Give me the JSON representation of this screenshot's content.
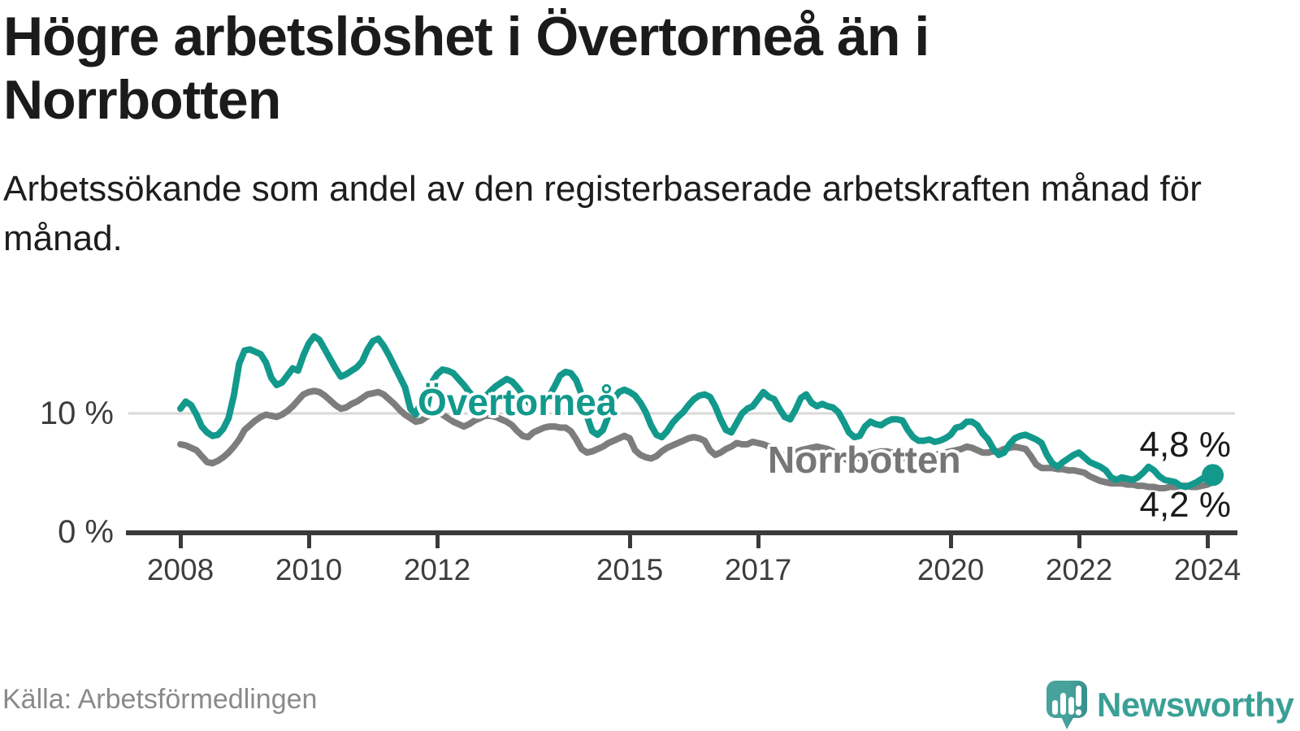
{
  "title": "Högre arbetslöshet i Övertorneå än i Norrbotten",
  "subtitle": "Arbetssökande som andel av den registerbaserade arbetskraften månad för månad.",
  "source": "Källa: Arbetsförmedlingen",
  "branding": {
    "name": "Newsworthy",
    "logo_icon": "speech-bubble-bar-chart-icon",
    "logo_color": "#47a29c",
    "logo_color_dark": "#358f8b",
    "text_color": "#3aa096"
  },
  "colors": {
    "background": "#ffffff",
    "title_text": "#1b1b1b",
    "axis_line": "#3a3a3a",
    "gridline": "#d9d9d9",
    "tick_text": "#3d3d3d",
    "source_text": "#8a8a8a",
    "overtornea": "#12998c",
    "norrbotten": "#7d7d7d"
  },
  "chart_data": {
    "type": "line",
    "title": "Högre arbetslöshet i Övertorneå än i Norrbotten",
    "subtitle": "Arbetssökande som andel av den registerbaserade arbetskraften månad för månad.",
    "unit": "percent of registered labour force",
    "x_start_year": 2008,
    "points_per_year": 12,
    "x_tick_years": [
      2008,
      2010,
      2012,
      2015,
      2017,
      2020,
      2022,
      2024
    ],
    "y_ticks": [
      {
        "value": 0,
        "label": "0 %"
      },
      {
        "value": 10,
        "label": "10 %"
      }
    ],
    "ylim": [
      0,
      17.5
    ],
    "grid": "horizontal-10-only",
    "legend_position": "inline-labels",
    "series": [
      {
        "name": "Övertorneå",
        "color": "#12998c",
        "end_label": "4,8 %",
        "end_value": 4.8,
        "values": [
          10.4,
          11.0,
          10.7,
          9.9,
          8.9,
          8.4,
          8.1,
          8.2,
          8.7,
          9.6,
          11.5,
          14.2,
          15.3,
          15.4,
          15.2,
          15.0,
          14.3,
          13.0,
          12.4,
          12.6,
          13.2,
          13.8,
          13.6,
          14.9,
          15.9,
          16.5,
          16.2,
          15.4,
          14.6,
          13.8,
          13.1,
          13.3,
          13.6,
          13.9,
          14.4,
          15.4,
          16.1,
          16.3,
          15.7,
          14.9,
          14.0,
          13.1,
          12.2,
          10.4,
          9.9,
          11.0,
          10.2,
          12.6,
          13.3,
          13.7,
          13.6,
          13.4,
          12.9,
          12.4,
          11.8,
          11.3,
          11.0,
          11.4,
          11.9,
          12.3,
          12.6,
          12.9,
          12.7,
          12.2,
          11.6,
          11.0,
          10.5,
          10.4,
          10.9,
          11.5,
          12.3,
          13.2,
          13.5,
          13.4,
          12.8,
          11.6,
          9.8,
          8.5,
          8.2,
          8.6,
          9.8,
          11.2,
          11.8,
          12.0,
          11.8,
          11.5,
          10.9,
          10.1,
          9.0,
          8.2,
          8.0,
          8.5,
          9.2,
          9.7,
          10.1,
          10.7,
          11.2,
          11.5,
          11.6,
          11.4,
          10.6,
          9.5,
          8.6,
          8.4,
          9.2,
          10.0,
          10.4,
          10.6,
          11.2,
          11.8,
          11.4,
          11.2,
          10.4,
          9.7,
          9.5,
          10.3,
          11.3,
          11.6,
          10.9,
          10.6,
          10.8,
          10.6,
          10.5,
          10.1,
          9.3,
          8.4,
          8.0,
          8.1,
          8.9,
          9.3,
          9.1,
          9.0,
          9.3,
          9.5,
          9.5,
          9.4,
          8.6,
          8.0,
          7.7,
          7.7,
          7.8,
          7.6,
          7.7,
          7.9,
          8.2,
          8.8,
          8.9,
          9.3,
          9.3,
          9.0,
          8.3,
          7.8,
          7.0,
          6.5,
          6.7,
          7.4,
          7.9,
          8.1,
          8.2,
          8.0,
          7.8,
          7.5,
          6.5,
          5.8,
          5.5,
          5.9,
          6.2,
          6.5,
          6.7,
          6.3,
          5.9,
          5.7,
          5.5,
          5.2,
          4.6,
          4.4,
          4.6,
          4.5,
          4.4,
          4.6,
          5.0,
          5.5,
          5.2,
          4.7,
          4.4,
          4.3,
          4.2,
          3.9,
          3.8,
          4.0,
          4.2,
          4.5,
          4.6,
          4.8
        ]
      },
      {
        "name": "Norrbotten",
        "color": "#7d7d7d",
        "end_label": "4,2 %",
        "end_value": 4.2,
        "values": [
          7.4,
          7.3,
          7.1,
          6.9,
          6.4,
          5.9,
          5.8,
          6.0,
          6.3,
          6.7,
          7.2,
          7.8,
          8.6,
          9.0,
          9.4,
          9.7,
          9.9,
          9.8,
          9.7,
          9.9,
          10.2,
          10.6,
          11.1,
          11.6,
          11.8,
          11.9,
          11.8,
          11.5,
          11.1,
          10.7,
          10.4,
          10.5,
          10.8,
          11.0,
          11.3,
          11.6,
          11.7,
          11.8,
          11.6,
          11.2,
          10.8,
          10.3,
          9.9,
          9.6,
          9.3,
          9.4,
          9.7,
          9.9,
          10.1,
          9.9,
          9.6,
          9.3,
          9.1,
          8.9,
          9.1,
          9.4,
          9.6,
          9.8,
          9.8,
          9.7,
          9.5,
          9.3,
          9.0,
          8.5,
          8.1,
          8.0,
          8.4,
          8.6,
          8.8,
          8.9,
          8.9,
          8.8,
          8.8,
          8.5,
          7.8,
          7.0,
          6.7,
          6.8,
          7.0,
          7.2,
          7.5,
          7.7,
          7.9,
          8.1,
          7.9,
          6.9,
          6.5,
          6.3,
          6.2,
          6.4,
          6.8,
          7.1,
          7.3,
          7.5,
          7.7,
          7.9,
          8.0,
          7.9,
          7.7,
          6.9,
          6.5,
          6.7,
          7.0,
          7.2,
          7.5,
          7.4,
          7.4,
          7.6,
          7.5,
          7.4,
          7.2,
          6.9,
          6.6,
          6.4,
          6.5,
          6.7,
          6.9,
          7.0,
          7.1,
          7.2,
          7.1,
          7.0,
          6.8,
          6.5,
          6.2,
          6.0,
          6.1,
          6.3,
          6.5,
          6.6,
          6.7,
          6.8,
          6.8,
          6.7,
          6.5,
          6.3,
          6.1,
          6.0,
          6.1,
          6.3,
          6.4,
          6.5,
          6.6,
          6.7,
          6.8,
          6.9,
          7.0,
          7.2,
          7.1,
          6.9,
          6.7,
          6.7,
          6.8,
          6.8,
          7.0,
          7.1,
          7.2,
          7.1,
          7.0,
          6.4,
          5.7,
          5.4,
          5.4,
          5.4,
          5.3,
          5.3,
          5.2,
          5.2,
          5.1,
          5.0,
          4.7,
          4.5,
          4.3,
          4.2,
          4.1,
          4.1,
          4.1,
          4.0,
          4.0,
          3.9,
          3.9,
          3.8,
          3.8,
          3.7,
          3.7,
          3.8,
          3.8,
          3.9,
          3.9,
          3.8,
          3.8,
          3.9,
          4.0,
          4.2
        ]
      }
    ]
  }
}
